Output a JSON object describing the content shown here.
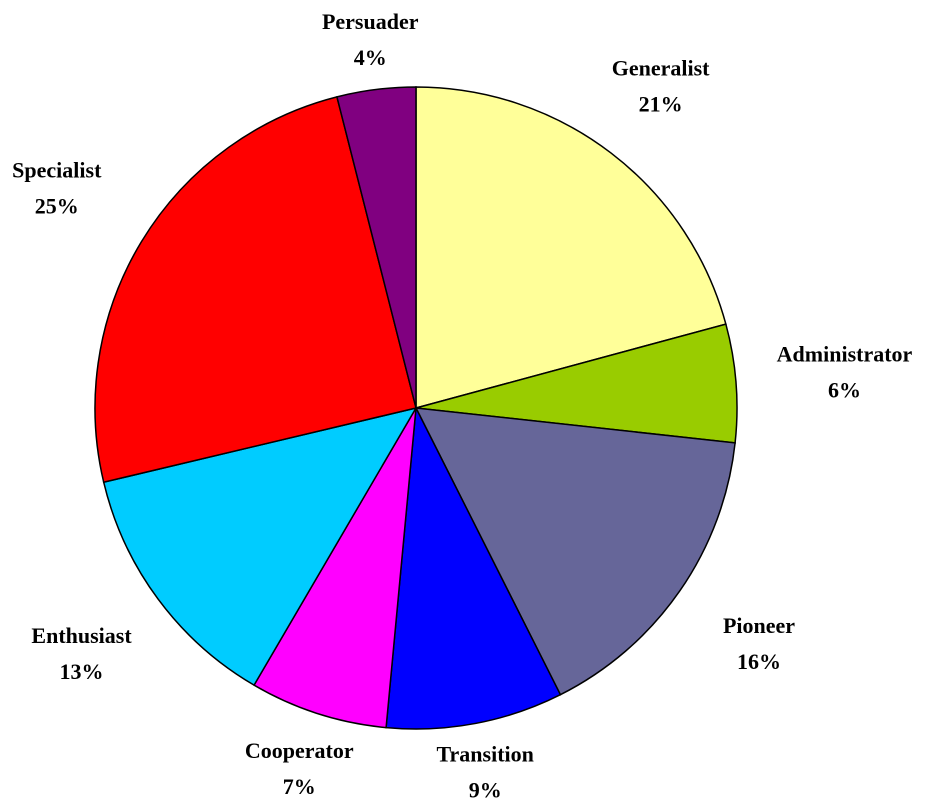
{
  "chart_data": {
    "type": "pie",
    "categories": [
      "Generalist",
      "Administrator",
      "Pioneer",
      "Transition",
      "Cooperator",
      "Enthusiast",
      "Specialist",
      "Persuader"
    ],
    "values": [
      21,
      6,
      16,
      9,
      7,
      13,
      25,
      4
    ],
    "value_labels": [
      "21%",
      "6%",
      "16%",
      "9%",
      "7%",
      "13%",
      "25%",
      "4%"
    ],
    "colors": [
      "#ffff99",
      "#99cc00",
      "#666699",
      "#0000ff",
      "#ff00ff",
      "#00ccff",
      "#ff0000",
      "#800080"
    ]
  }
}
